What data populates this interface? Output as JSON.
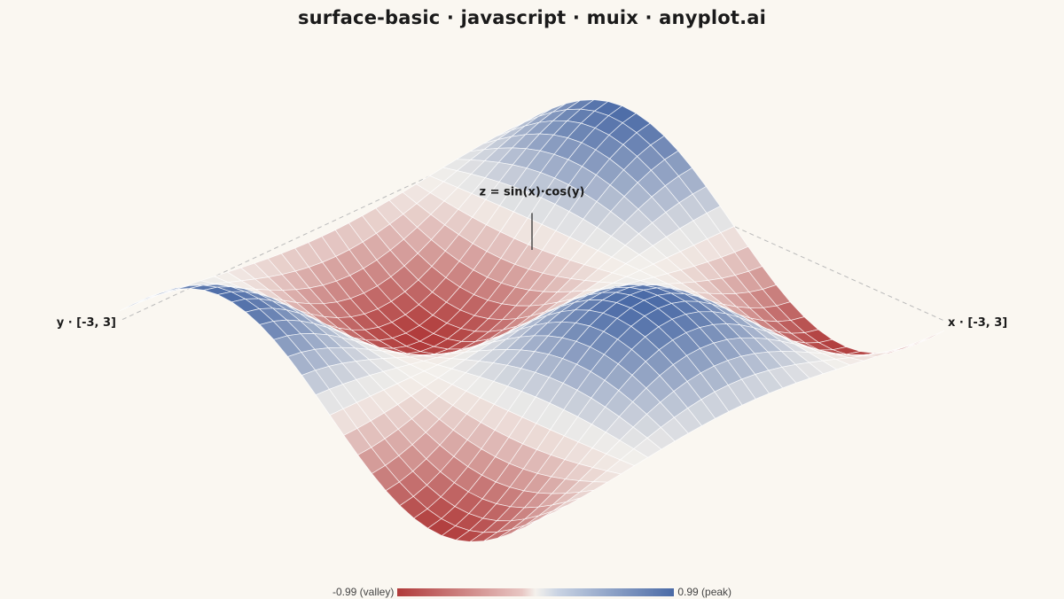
{
  "title": "surface-basic · javascript · muix · anyplot.ai",
  "chart_data": {
    "type": "surface",
    "formula": "z = sin(x)·cos(y)",
    "x_label": "x · [-3, 3]",
    "y_label": "y · [-3, 3]",
    "x_range": [
      -3,
      3
    ],
    "y_range": [
      -3,
      3
    ],
    "z_range": [
      -0.99,
      0.99
    ],
    "grid_steps": 30,
    "colorscale": {
      "low": "#B03A3A",
      "mid": "#F4F1EC",
      "high": "#4A6AA6"
    },
    "legend": {
      "min_label": "-0.99 (valley)",
      "max_label": "0.99 (peak)"
    }
  }
}
